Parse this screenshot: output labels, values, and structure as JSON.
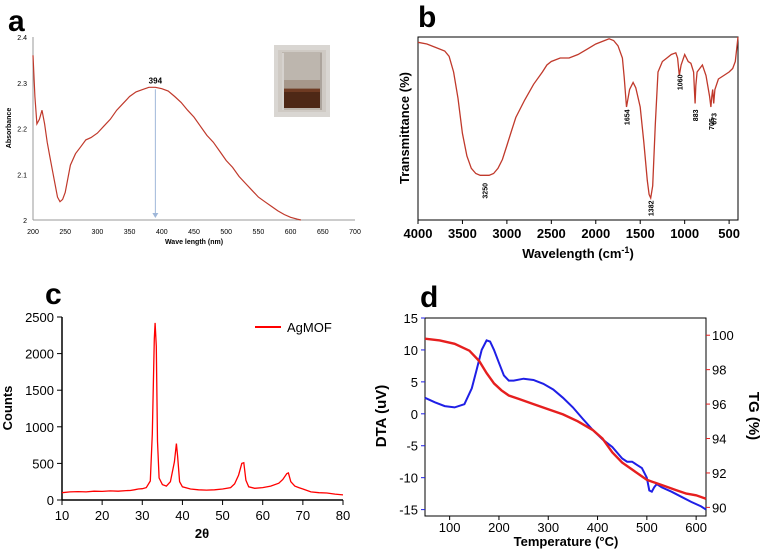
{
  "panels": {
    "a": {
      "label": "a"
    },
    "b": {
      "label": "b"
    },
    "c": {
      "label": "c"
    },
    "d": {
      "label": "d"
    }
  },
  "chart_data": [
    {
      "panel": "a",
      "type": "line",
      "title": "",
      "xlabel": "Wave length (nm)",
      "ylabel": "Absorbance",
      "xlim": [
        200,
        700
      ],
      "ylim": [
        2,
        2.4
      ],
      "xticks": [
        "200",
        "250",
        "300",
        "350",
        "400",
        "450",
        "500",
        "550",
        "600",
        "650",
        "700"
      ],
      "yticks": [
        "2",
        "2.1",
        "2.2",
        "2.3",
        "2.4"
      ],
      "annotation": {
        "text": "394",
        "x": 390,
        "y": 2.29
      },
      "series": [
        {
          "name": "Absorbance",
          "color": "#c0392b",
          "x": [
            200,
            203,
            206,
            210,
            214,
            218,
            222,
            226,
            230,
            234,
            238,
            242,
            246,
            250,
            258,
            266,
            274,
            282,
            290,
            300,
            310,
            320,
            330,
            340,
            350,
            360,
            370,
            380,
            390,
            400,
            410,
            420,
            430,
            440,
            450,
            460,
            470,
            480,
            490,
            500,
            510,
            520,
            530,
            540,
            550,
            560,
            570,
            580,
            590,
            600,
            610,
            616
          ],
          "y": [
            2.36,
            2.27,
            2.21,
            2.22,
            2.24,
            2.21,
            2.17,
            2.14,
            2.11,
            2.08,
            2.05,
            2.04,
            2.045,
            2.06,
            2.12,
            2.145,
            2.16,
            2.175,
            2.18,
            2.19,
            2.205,
            2.22,
            2.24,
            2.255,
            2.27,
            2.28,
            2.285,
            2.29,
            2.29,
            2.287,
            2.282,
            2.27,
            2.257,
            2.24,
            2.225,
            2.205,
            2.185,
            2.17,
            2.15,
            2.13,
            2.115,
            2.095,
            2.08,
            2.065,
            2.05,
            2.04,
            2.03,
            2.02,
            2.012,
            2.006,
            2.002,
            2.0
          ]
        }
      ]
    },
    {
      "panel": "b",
      "type": "line",
      "title": "",
      "xlabel": "Wavelength (cm⁻¹)",
      "xlabel_text": "Wavelength (cm",
      "xlabel_sup": "-1",
      "xlabel_end": ")",
      "ylabel": "Transmittance (%)",
      "xlim": [
        4000,
        400
      ],
      "ylim": [
        0,
        100
      ],
      "xticks": [
        "4000",
        "3500",
        "3000",
        "2500",
        "2000",
        "1500",
        "1000",
        "500"
      ],
      "peaks": [
        {
          "label": "3250",
          "x": 3250,
          "y": 20
        },
        {
          "label": "1654",
          "x": 1654,
          "y": 62
        },
        {
          "label": "1382",
          "x": 1382,
          "y": 10
        },
        {
          "label": "1060",
          "x": 1060,
          "y": 82
        },
        {
          "label": "883",
          "x": 883,
          "y": 62
        },
        {
          "label": "705",
          "x": 705,
          "y": 57
        },
        {
          "label": "673",
          "x": 673,
          "y": 60
        }
      ],
      "series": [
        {
          "name": "Transmittance",
          "color": "#c0392b",
          "x": [
            4000,
            3900,
            3800,
            3700,
            3650,
            3600,
            3550,
            3500,
            3450,
            3400,
            3350,
            3300,
            3250,
            3200,
            3150,
            3100,
            3050,
            3000,
            2950,
            2900,
            2800,
            2700,
            2600,
            2550,
            2500,
            2400,
            2300,
            2200,
            2100,
            2000,
            1900,
            1850,
            1800,
            1750,
            1700,
            1680,
            1654,
            1620,
            1580,
            1550,
            1500,
            1460,
            1420,
            1400,
            1382,
            1360,
            1330,
            1300,
            1250,
            1200,
            1150,
            1100,
            1080,
            1060,
            1040,
            1000,
            960,
            930,
            900,
            890,
            883,
            875,
            860,
            800,
            760,
            740,
            720,
            705,
            695,
            685,
            673,
            660,
            620,
            560,
            500,
            460,
            430,
            400
          ],
          "y": [
            97,
            96,
            94,
            92,
            89,
            80,
            65,
            45,
            32,
            25,
            22,
            21,
            21,
            21,
            22,
            25,
            30,
            38,
            46,
            54,
            64,
            73,
            80,
            84,
            86,
            88,
            88,
            90,
            93,
            96,
            98,
            99,
            98,
            95,
            88,
            77,
            60,
            70,
            74,
            71,
            60,
            40,
            18,
            10,
            8,
            15,
            50,
            80,
            86,
            88,
            90,
            91,
            88,
            78,
            84,
            90,
            86,
            85,
            80,
            70,
            62,
            72,
            80,
            84,
            78,
            72,
            66,
            60,
            66,
            70,
            62,
            70,
            76,
            78,
            80,
            82,
            86,
            100
          ]
        }
      ]
    },
    {
      "panel": "c",
      "type": "line",
      "title": "",
      "xlabel": "2θ",
      "ylabel": "Counts",
      "xlim": [
        10,
        80
      ],
      "ylim": [
        0,
        2500
      ],
      "xticks": [
        "10",
        "20",
        "30",
        "40",
        "50",
        "60",
        "70",
        "80"
      ],
      "yticks": [
        "0",
        "500",
        "1000",
        "1500",
        "2000",
        "2500"
      ],
      "legend": {
        "label": "AgMOF",
        "placement": "top-right"
      },
      "series": [
        {
          "name": "AgMOF",
          "color": "#ff0000",
          "x": [
            10,
            12,
            14,
            16,
            18,
            20,
            22,
            24,
            26,
            27,
            28,
            29,
            30,
            31,
            32,
            32.5,
            33,
            33.2,
            33.5,
            33.8,
            34.2,
            35,
            36,
            37,
            38,
            38.5,
            38.8,
            39.3,
            40,
            42,
            44,
            46,
            48,
            50,
            52,
            53,
            54,
            54.8,
            55.3,
            55.8,
            56.5,
            58,
            60,
            62,
            64,
            65,
            66,
            66.4,
            67,
            68,
            69,
            70,
            72,
            74,
            76,
            78,
            80
          ],
          "y": [
            100,
            110,
            115,
            110,
            120,
            118,
            125,
            120,
            128,
            130,
            140,
            150,
            155,
            170,
            260,
            900,
            2200,
            2420,
            2100,
            800,
            300,
            210,
            190,
            250,
            520,
            770,
            600,
            250,
            180,
            150,
            140,
            135,
            140,
            150,
            170,
            220,
            340,
            500,
            510,
            270,
            180,
            160,
            170,
            190,
            230,
            280,
            360,
            370,
            250,
            190,
            170,
            150,
            110,
            100,
            95,
            80,
            70
          ]
        }
      ]
    },
    {
      "panel": "d",
      "type": "line",
      "title": "",
      "xlabel": "Temperature (°C)",
      "ylabel_left": "DTA (uV)",
      "ylabel_right": "TG (%)",
      "xlim": [
        50,
        620
      ],
      "ylim_left": [
        -16,
        15
      ],
      "ylim_right": [
        89.5,
        101
      ],
      "xticks": [
        "100",
        "200",
        "300",
        "400",
        "500",
        "600"
      ],
      "yticks_left": [
        "15",
        "10",
        "5",
        "0",
        "-5",
        "-10",
        "-15"
      ],
      "yticks_right": [
        "100",
        "98",
        "96",
        "94",
        "92",
        "90"
      ],
      "series": [
        {
          "name": "DTA",
          "axis": "left",
          "color": "#1f1fe6",
          "x": [
            50,
            70,
            90,
            110,
            130,
            145,
            155,
            165,
            175,
            182,
            190,
            200,
            210,
            220,
            230,
            250,
            270,
            290,
            310,
            330,
            350,
            370,
            390,
            410,
            430,
            450,
            460,
            470,
            480,
            490,
            500,
            505,
            510,
            515,
            520,
            530,
            550,
            570,
            590,
            610,
            620
          ],
          "y": [
            2.5,
            1.8,
            1.2,
            1.0,
            1.5,
            4,
            7,
            10,
            11.5,
            11.3,
            10,
            8,
            6,
            5.2,
            5.2,
            5.5,
            5.3,
            4.7,
            3.8,
            2.5,
            1,
            -0.8,
            -2.5,
            -4,
            -5.2,
            -7,
            -7.5,
            -7.5,
            -8,
            -8.5,
            -10,
            -12,
            -12.2,
            -11.5,
            -11,
            -11.5,
            -12.2,
            -13,
            -13.8,
            -14.5,
            -15
          ]
        },
        {
          "name": "TG",
          "axis": "right",
          "color": "#e61f1f",
          "x": [
            50,
            80,
            110,
            140,
            160,
            175,
            190,
            205,
            220,
            240,
            270,
            300,
            330,
            360,
            390,
            410,
            430,
            450,
            470,
            490,
            500,
            510,
            520,
            540,
            560,
            580,
            600,
            620
          ],
          "y": [
            99.8,
            99.7,
            99.5,
            99.1,
            98.5,
            97.8,
            97.2,
            96.8,
            96.5,
            96.3,
            96.0,
            95.7,
            95.4,
            95.0,
            94.5,
            94.0,
            93.2,
            92.6,
            92.2,
            91.8,
            91.6,
            91.5,
            91.4,
            91.2,
            91.0,
            90.8,
            90.7,
            90.5
          ]
        }
      ]
    }
  ]
}
